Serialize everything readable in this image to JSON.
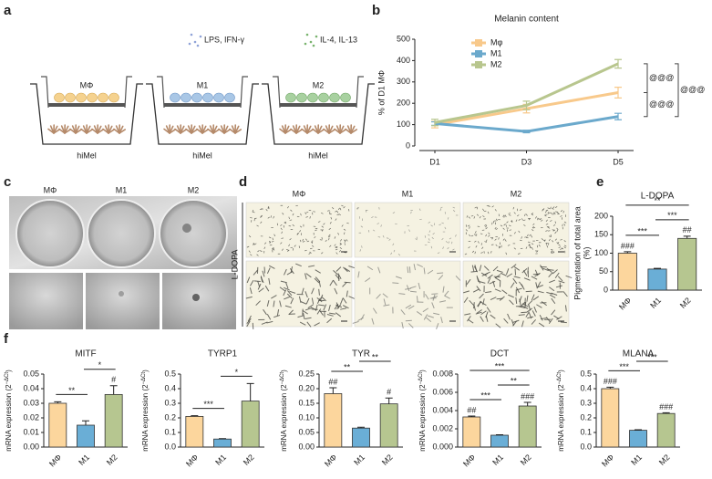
{
  "panel_labels": [
    "a",
    "b",
    "c",
    "d",
    "e",
    "f"
  ],
  "schematic": {
    "treatments": [
      "LPS, IFN-γ",
      "IL-4, IL-13"
    ],
    "wells": [
      {
        "cell": "MΦ",
        "base": "hiMel"
      },
      {
        "cell": "M1",
        "base": "hiMel"
      },
      {
        "cell": "M2",
        "base": "hiMel"
      }
    ]
  },
  "plate_photos": {
    "labels": [
      "MΦ",
      "M1",
      "M2"
    ]
  },
  "microscopy": {
    "labels": [
      "MΦ",
      "M1",
      "M2"
    ],
    "row_label": "L-DOPA"
  },
  "chart_data": [
    {
      "type": "line",
      "title": "Melanin content",
      "ylabel": "% of D1 MΦ",
      "categories": [
        "D1",
        "D3",
        "D5"
      ],
      "series": [
        {
          "name": "Mφ",
          "color": "#f8c98b",
          "values": [
            100,
            175,
            250
          ],
          "errors": [
            15,
            20,
            25
          ]
        },
        {
          "name": "M1",
          "color": "#6ba9cc",
          "values": [
            105,
            68,
            138
          ],
          "errors": [
            8,
            6,
            15
          ]
        },
        {
          "name": "M2",
          "color": "#b8c68e",
          "values": [
            110,
            190,
            385
          ],
          "errors": [
            15,
            20,
            20
          ]
        }
      ],
      "ylim": [
        0,
        500
      ],
      "yticks": [
        0,
        100,
        200,
        300,
        400,
        500
      ],
      "legend": "upper left",
      "brackets": [
        {
          "pair": [
            "M2",
            "Mφ"
          ],
          "label": "@@@"
        },
        {
          "pair": [
            "Mφ",
            "M1"
          ],
          "label": "@@@"
        },
        {
          "pair": [
            "M2",
            "M1"
          ],
          "label": "@@@"
        }
      ]
    },
    {
      "type": "bar",
      "title": "L-DOPA",
      "ylabel": [
        "Pigmentation of total area",
        "(%)"
      ],
      "categories": [
        "MΦ",
        "M1",
        "M2"
      ],
      "colors": [
        "#fcd69d",
        "#6aaed6",
        "#b6c690"
      ],
      "values": [
        100,
        57,
        140
      ],
      "errors": [
        4,
        2,
        6
      ],
      "bar_annotations": [
        "###",
        null,
        "##"
      ],
      "ylim": [
        0,
        200
      ],
      "yticks": [
        0,
        50,
        100,
        150,
        200
      ],
      "brackets": [
        {
          "pair": [
            "MΦ",
            "M1"
          ],
          "label": "***"
        },
        {
          "pair": [
            "M1",
            "M2"
          ],
          "label": "***"
        },
        {
          "pair": [
            "MΦ",
            "M2"
          ],
          "label": "**"
        }
      ]
    },
    {
      "type": "bar",
      "title": "MITF",
      "ylabel": [
        "mRNA expression (2",
        "−ΔCt",
        ")"
      ],
      "categories": [
        "MΦ",
        "M1",
        "M2"
      ],
      "colors": [
        "#fcd69d",
        "#6aaed6",
        "#b6c690"
      ],
      "values": [
        0.03,
        0.015,
        0.036
      ],
      "errors": [
        0.001,
        0.003,
        0.006
      ],
      "bar_annotations": [
        null,
        null,
        "#"
      ],
      "ylim": [
        0,
        0.05
      ],
      "yticks": [
        {
          "value": 0,
          "label": "0.00"
        },
        {
          "value": 0.01,
          "label": "0.01"
        },
        {
          "value": 0.02,
          "label": "0.02"
        },
        {
          "value": 0.03,
          "label": "0.03"
        },
        {
          "value": 0.04,
          "label": "0.04"
        },
        {
          "value": 0.05,
          "label": "0.05"
        }
      ],
      "brackets": [
        {
          "pair": [
            "MΦ",
            "M1"
          ],
          "label": "**"
        },
        {
          "pair": [
            "M1",
            "M2"
          ],
          "label": "*"
        }
      ]
    },
    {
      "type": "bar",
      "title": "TYRP1",
      "ylabel": [
        "mRNA expression (2",
        "−ΔCt",
        ")"
      ],
      "categories": [
        "MΦ",
        "M1",
        "M2"
      ],
      "colors": [
        "#fcd69d",
        "#6aaed6",
        "#b6c690"
      ],
      "values": [
        0.21,
        0.055,
        0.315
      ],
      "errors": [
        0.005,
        0.003,
        0.12
      ],
      "bar_annotations": [
        null,
        null,
        null
      ],
      "ylim": [
        0,
        0.5
      ],
      "yticks": [
        {
          "value": 0,
          "label": "0.0"
        },
        0.1,
        0.2,
        0.3,
        0.4,
        0.5
      ],
      "brackets": [
        {
          "pair": [
            "MΦ",
            "M1"
          ],
          "label": "***"
        },
        {
          "pair": [
            "M1",
            "M2"
          ],
          "label": "*"
        }
      ]
    },
    {
      "type": "bar",
      "title": "TYR",
      "ylabel": [
        "mRNA expression (2",
        "−ΔCt",
        ")"
      ],
      "categories": [
        "MΦ",
        "M1",
        "M2"
      ],
      "colors": [
        "#fcd69d",
        "#6aaed6",
        "#b6c690"
      ],
      "values": [
        0.183,
        0.065,
        0.148
      ],
      "errors": [
        0.02,
        0.003,
        0.02
      ],
      "bar_annotations": [
        "##",
        null,
        "#"
      ],
      "ylim": [
        0,
        0.25
      ],
      "yticks": [
        {
          "value": 0,
          "label": "0.00"
        },
        0.05,
        {
          "value": 0.1,
          "label": "0.10"
        },
        0.15,
        {
          "value": 0.2,
          "label": "0.20"
        },
        0.25
      ],
      "brackets": [
        {
          "pair": [
            "MΦ",
            "M1"
          ],
          "label": "**"
        },
        {
          "pair": [
            "M1",
            "M2"
          ],
          "label": "**"
        }
      ]
    },
    {
      "type": "bar",
      "title": "DCT",
      "ylabel": [
        "mRNA expression (2",
        "−ΔCt",
        ")"
      ],
      "categories": [
        "MΦ",
        "M1",
        "M2"
      ],
      "colors": [
        "#fcd69d",
        "#6aaed6",
        "#b6c690"
      ],
      "values": [
        0.0033,
        0.0013,
        0.0045
      ],
      "errors": [
        0.0001,
        5e-05,
        0.0004
      ],
      "bar_annotations": [
        "##",
        null,
        "###"
      ],
      "ylim": [
        0,
        0.008
      ],
      "yticks": [
        {
          "value": 0,
          "label": "0.000"
        },
        0.002,
        0.004,
        0.006,
        0.008
      ],
      "brackets": [
        {
          "pair": [
            "MΦ",
            "M1"
          ],
          "label": "***"
        },
        {
          "pair": [
            "M1",
            "M2"
          ],
          "label": "**"
        },
        {
          "pair": [
            "MΦ",
            "M2"
          ],
          "label": "***"
        }
      ]
    },
    {
      "type": "bar",
      "title": "MLANA",
      "ylabel": [
        "mRNA expression (2",
        "−ΔCt",
        ")"
      ],
      "categories": [
        "MΦ",
        "M1",
        "M2"
      ],
      "colors": [
        "#fcd69d",
        "#6aaed6",
        "#b6c690"
      ],
      "values": [
        0.4,
        0.115,
        0.23
      ],
      "errors": [
        0.01,
        0.004,
        0.005
      ],
      "bar_annotations": [
        "###",
        null,
        "###"
      ],
      "ylim": [
        0,
        0.5
      ],
      "yticks": [
        {
          "value": 0,
          "label": "0.0"
        },
        0.1,
        0.2,
        0.3,
        0.4,
        0.5
      ],
      "brackets": [
        {
          "pair": [
            "MΦ",
            "M1"
          ],
          "label": "***"
        },
        {
          "pair": [
            "M1",
            "M2"
          ],
          "label": "***"
        }
      ]
    }
  ]
}
